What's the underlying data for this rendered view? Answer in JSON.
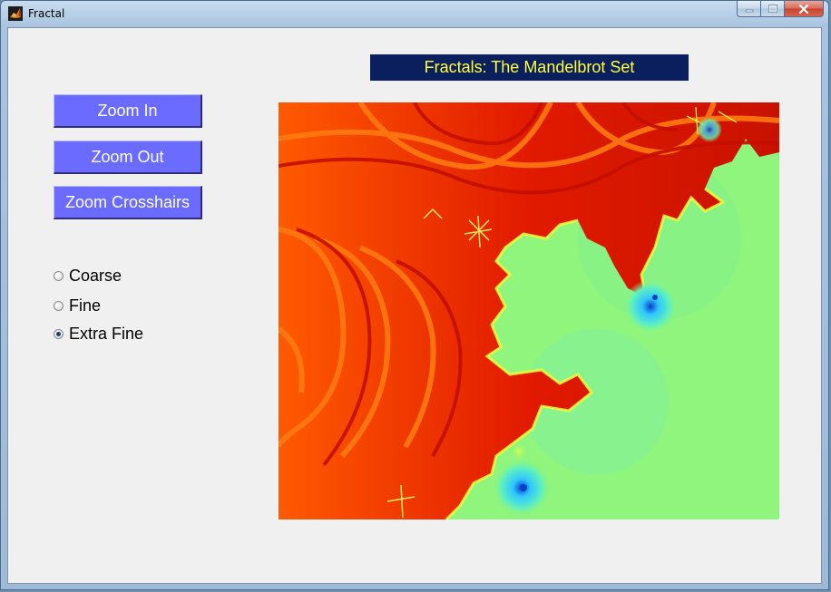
{
  "window": {
    "title": "Fractal",
    "controls": {
      "minimize_icon": "minimize-icon",
      "maximize_icon": "maximize-icon",
      "close_icon": "close-icon"
    }
  },
  "banner": {
    "title": "Fractals: The Mandelbrot Set",
    "background": "#0b1f5e",
    "color": "#ffff3c"
  },
  "buttons": {
    "zoom_in": "Zoom In",
    "zoom_out": "Zoom Out",
    "zoom_crosshairs": "Zoom Crosshairs",
    "color": "#6b6bff"
  },
  "resolution": {
    "options": [
      {
        "label": "Coarse",
        "selected": false
      },
      {
        "label": "Fine",
        "selected": false
      },
      {
        "label": "Extra Fine",
        "selected": true
      }
    ]
  },
  "plot": {
    "colormap": "jet",
    "colors": {
      "set_interior": "#8ff57c",
      "escape_red": "#e11a00",
      "escape_orange": "#ff4a00",
      "boundary_yellow": "#f0ff3c",
      "deep_blue": "#0a3fc8"
    }
  }
}
